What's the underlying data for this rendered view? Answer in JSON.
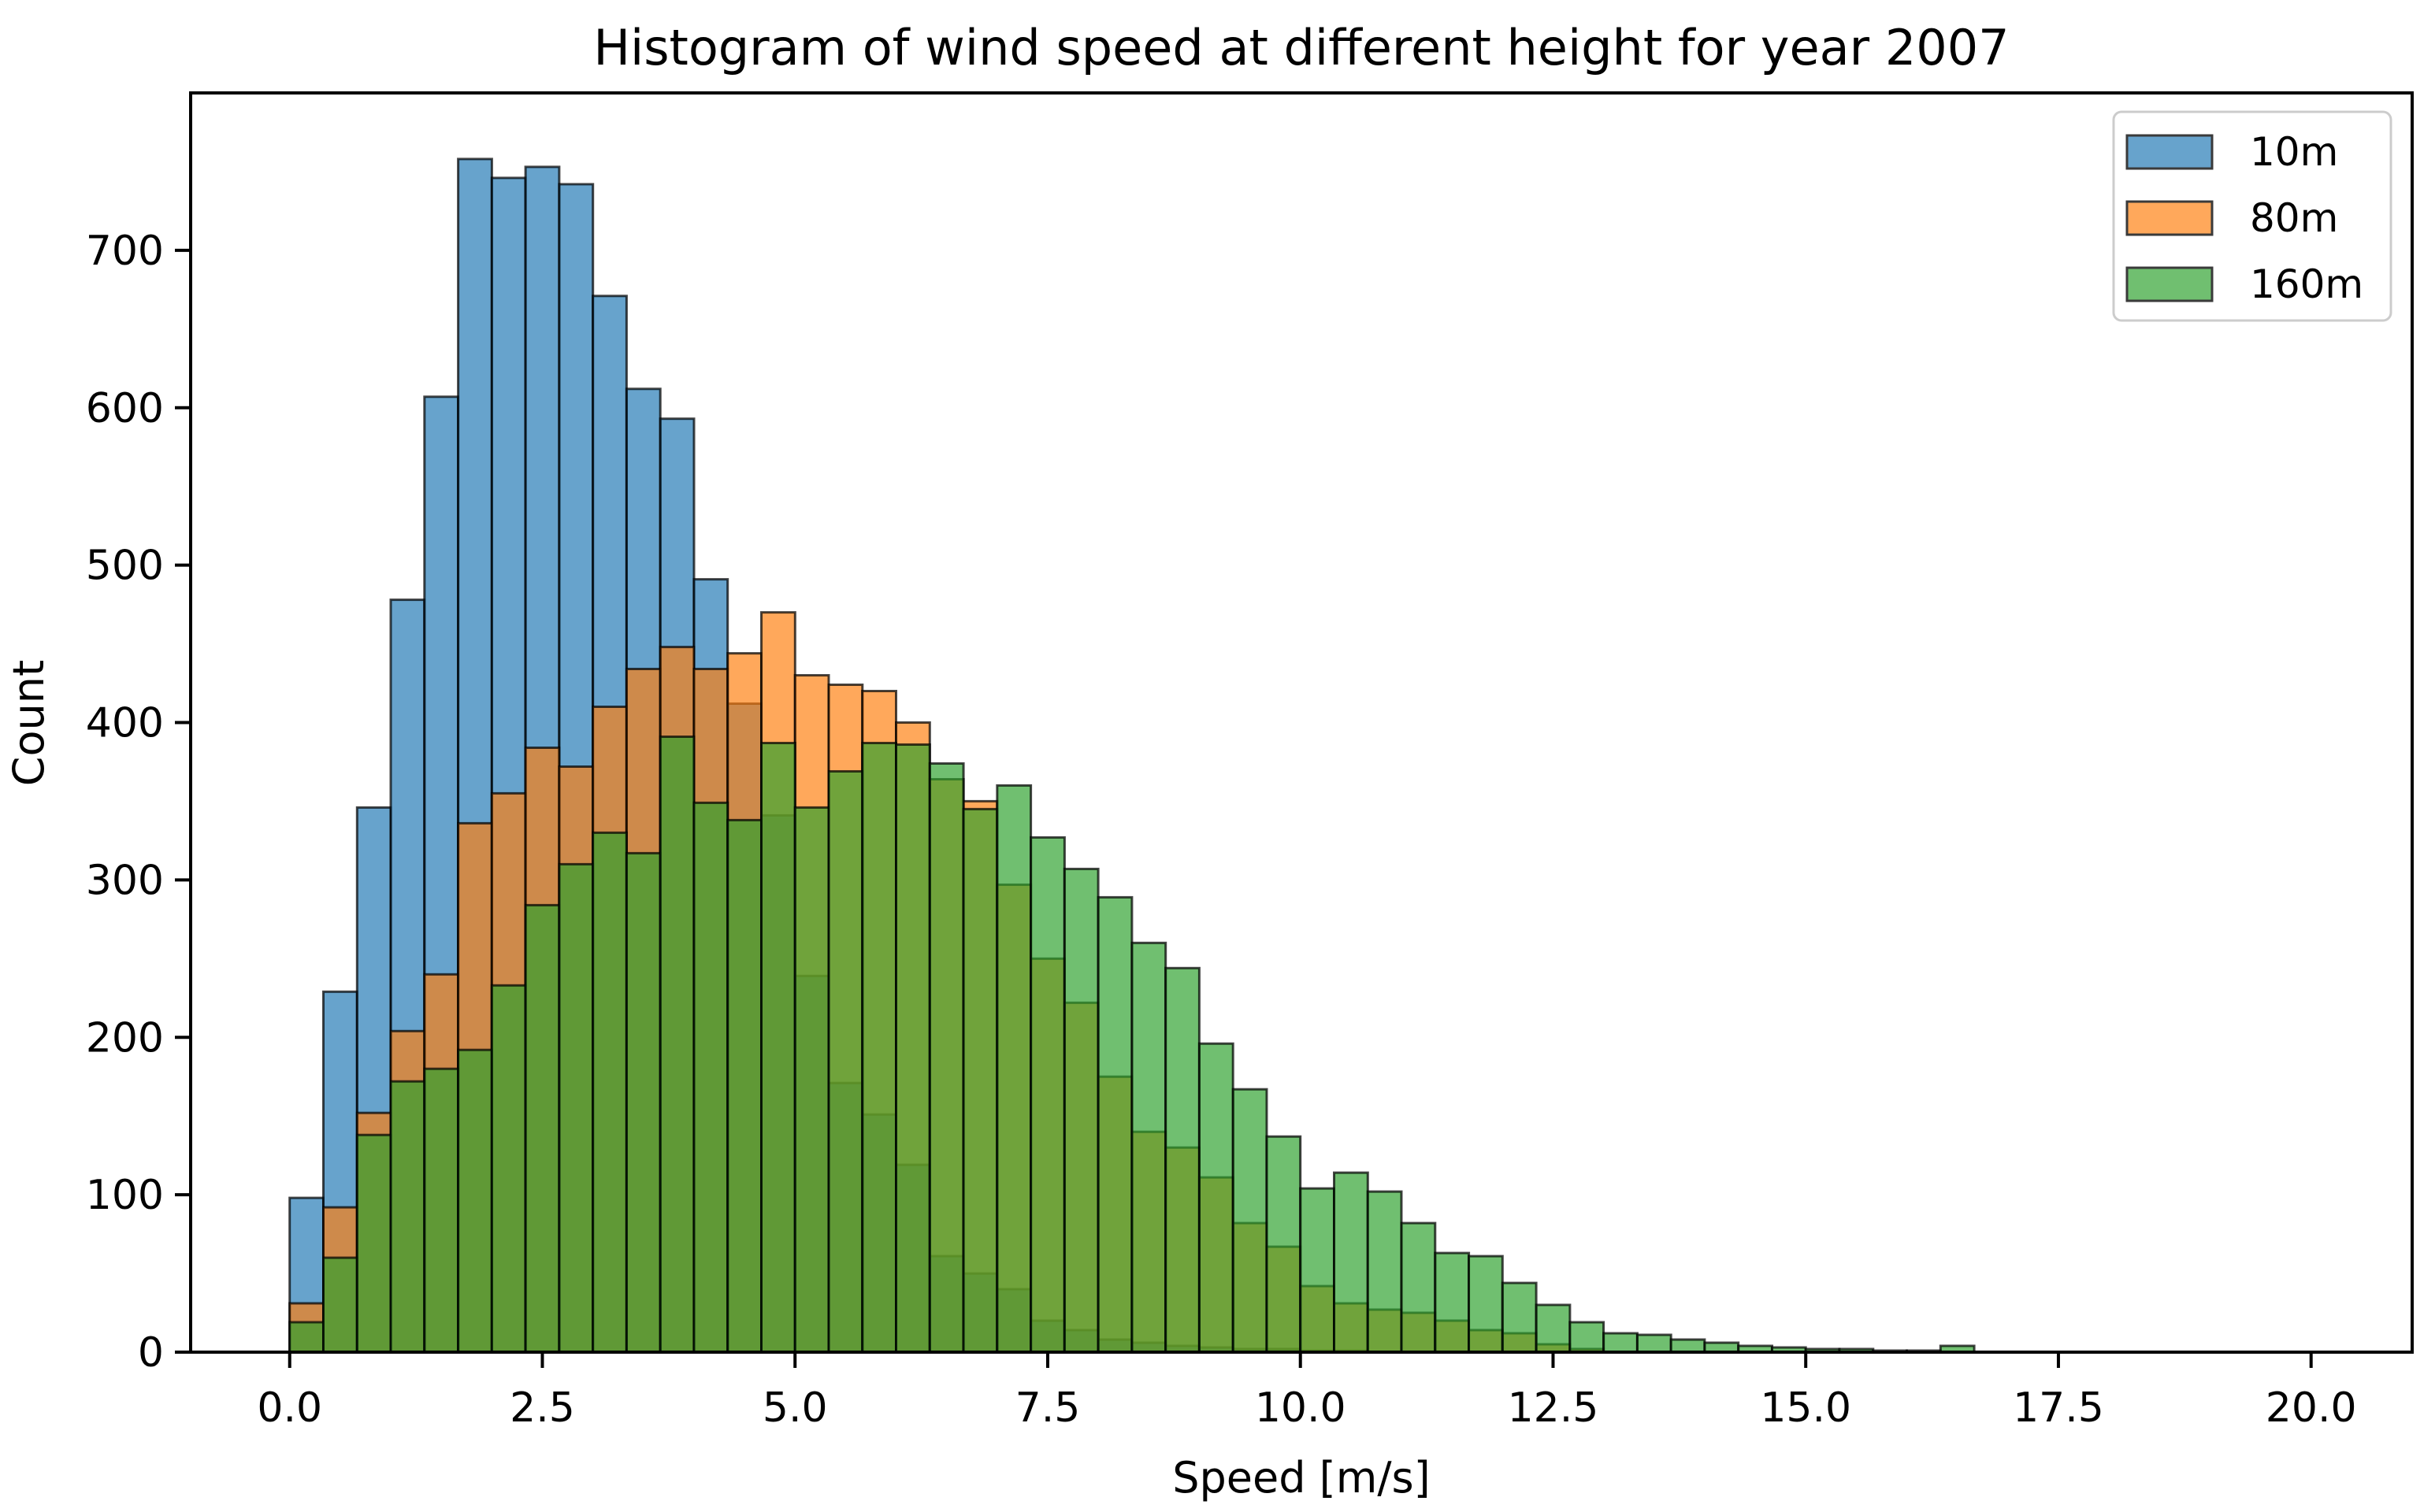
{
  "figure": {
    "background": "#ffffff",
    "text_color": "#000000"
  },
  "chart_data": {
    "type": "bar",
    "subtype": "overlapping-histogram",
    "title": "Histogram of wind speed at different height for year 2007",
    "xlabel": "Speed [m/s]",
    "ylabel": "Count",
    "grid": false,
    "legend_position": "upper right",
    "bin_start": 0,
    "bin_width": 0.33333,
    "alpha": 0.68,
    "edge_color": "#000000",
    "xlim": [
      -0.98,
      21.0
    ],
    "ylim": [
      0,
      800
    ],
    "x_ticks": [
      0,
      2.5,
      5,
      7.5,
      10,
      12.5,
      15,
      17.5,
      20
    ],
    "x_tick_labels": [
      "0.0",
      "2.5",
      "5.0",
      "7.5",
      "10.0",
      "12.5",
      "15.0",
      "17.5",
      "20.0"
    ],
    "y_ticks": [
      0,
      100,
      200,
      300,
      400,
      500,
      600,
      700
    ],
    "y_tick_labels": [
      "0",
      "100",
      "200",
      "300",
      "400",
      "500",
      "600",
      "700"
    ],
    "series": [
      {
        "name": "10m",
        "color": "#1f77b4",
        "values": [
          98,
          229,
          346,
          478,
          607,
          758,
          746,
          753,
          742,
          671,
          612,
          593,
          491,
          412,
          341,
          239,
          171,
          151,
          119,
          61,
          50,
          40,
          20,
          14,
          8,
          6,
          4,
          3,
          2,
          2,
          1,
          1
        ]
      },
      {
        "name": "80m",
        "color": "#ff7f0e",
        "values": [
          31,
          92,
          152,
          204,
          240,
          336,
          355,
          384,
          372,
          410,
          434,
          448,
          434,
          444,
          470,
          430,
          424,
          420,
          400,
          364,
          350,
          297,
          250,
          222,
          175,
          140,
          130,
          111,
          82,
          67,
          42,
          31,
          27,
          25,
          20,
          14,
          12,
          5,
          2
        ]
      },
      {
        "name": "160m",
        "color": "#2ca02c",
        "values": [
          19,
          60,
          138,
          172,
          180,
          192,
          233,
          284,
          310,
          330,
          317,
          391,
          349,
          338,
          387,
          346,
          369,
          387,
          386,
          374,
          345,
          360,
          327,
          307,
          289,
          260,
          244,
          196,
          167,
          137,
          104,
          114,
          102,
          82,
          63,
          61,
          44,
          30,
          19,
          12,
          11,
          8,
          6,
          4,
          3,
          2,
          2,
          1,
          1,
          4
        ]
      }
    ]
  }
}
